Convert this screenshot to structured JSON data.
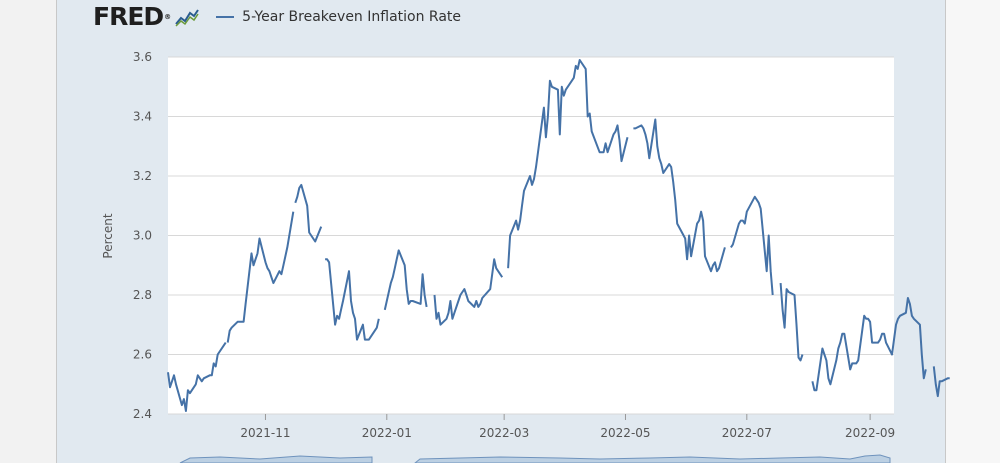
{
  "brand": {
    "logo_text": "FRED",
    "registered_mark": "®"
  },
  "colors": {
    "series": "#4572a7",
    "panel_bg": "#e1e9f0",
    "plot_bg": "#ffffff",
    "grid": "#d8d8d8"
  },
  "chart_data": {
    "type": "line",
    "series_name": "5-Year Breakeven Inflation Rate",
    "ylabel": "Percent",
    "xlabel": "",
    "ylim": [
      2.4,
      3.6
    ],
    "yticks": [
      2.4,
      2.6,
      2.8,
      3.0,
      3.2,
      3.4,
      3.6
    ],
    "ytick_labels": [
      "2.4",
      "2.6",
      "2.8",
      "3.0",
      "3.2",
      "3.4",
      "3.6"
    ],
    "x_start": "2021-09-13",
    "x_end": "2022-09-13",
    "xticks": [
      "2021-11-01",
      "2022-01-01",
      "2022-03-01",
      "2022-05-01",
      "2022-07-01",
      "2022-09-01"
    ],
    "xtick_labels": [
      "2021-11",
      "2022-01",
      "2022-03",
      "2022-05",
      "2022-07",
      "2022-09"
    ],
    "grid": true,
    "segments": [
      [
        [
          "2021-09-13",
          2.54
        ],
        [
          "2021-09-14",
          2.49
        ],
        [
          "2021-09-15",
          2.51
        ],
        [
          "2021-09-16",
          2.53
        ],
        [
          "2021-09-17",
          2.5
        ],
        [
          "2021-09-20",
          2.43
        ],
        [
          "2021-09-21",
          2.45
        ],
        [
          "2021-09-22",
          2.41
        ],
        [
          "2021-09-23",
          2.48
        ],
        [
          "2021-09-24",
          2.47
        ],
        [
          "2021-09-27",
          2.5
        ],
        [
          "2021-09-28",
          2.53
        ],
        [
          "2021-09-29",
          2.52
        ],
        [
          "2021-09-30",
          2.51
        ],
        [
          "2021-10-01",
          2.52
        ],
        [
          "2021-10-04",
          2.53
        ],
        [
          "2021-10-05",
          2.53
        ],
        [
          "2021-10-06",
          2.57
        ],
        [
          "2021-10-07",
          2.56
        ],
        [
          "2021-10-08",
          2.6
        ],
        [
          "2021-10-12",
          2.64
        ]
      ],
      [
        [
          "2021-10-13",
          2.64
        ],
        [
          "2021-10-14",
          2.68
        ],
        [
          "2021-10-15",
          2.69
        ],
        [
          "2021-10-18",
          2.71
        ],
        [
          "2021-10-19",
          2.71
        ],
        [
          "2021-10-20",
          2.71
        ],
        [
          "2021-10-21",
          2.71
        ],
        [
          "2021-10-22",
          2.77
        ],
        [
          "2021-10-25",
          2.94
        ],
        [
          "2021-10-26",
          2.9
        ],
        [
          "2021-10-27",
          2.92
        ],
        [
          "2021-10-28",
          2.94
        ],
        [
          "2021-10-29",
          2.99
        ],
        [
          "2021-11-01",
          2.91
        ],
        [
          "2021-11-02",
          2.89
        ],
        [
          "2021-11-03",
          2.88
        ],
        [
          "2021-11-04",
          2.86
        ],
        [
          "2021-11-05",
          2.84
        ],
        [
          "2021-11-08",
          2.88
        ],
        [
          "2021-11-09",
          2.87
        ],
        [
          "2021-11-10",
          2.9
        ],
        [
          "2021-11-12",
          2.96
        ],
        [
          "2021-11-15",
          3.08
        ]
      ],
      [
        [
          "2021-11-16",
          3.11
        ],
        [
          "2021-11-17",
          3.13
        ],
        [
          "2021-11-18",
          3.16
        ],
        [
          "2021-11-19",
          3.17
        ],
        [
          "2021-11-22",
          3.1
        ],
        [
          "2021-11-23",
          3.01
        ],
        [
          "2021-11-24",
          3.0
        ],
        [
          "2021-11-26",
          2.98
        ],
        [
          "2021-11-29",
          3.03
        ]
      ],
      [
        [
          "2021-12-01",
          2.92
        ],
        [
          "2021-12-02",
          2.92
        ],
        [
          "2021-12-03",
          2.91
        ],
        [
          "2021-12-06",
          2.7
        ],
        [
          "2021-12-07",
          2.73
        ],
        [
          "2021-12-08",
          2.72
        ],
        [
          "2021-12-09",
          2.75
        ],
        [
          "2021-12-10",
          2.78
        ],
        [
          "2021-12-13",
          2.88
        ],
        [
          "2021-12-14",
          2.78
        ],
        [
          "2021-12-15",
          2.74
        ],
        [
          "2021-12-16",
          2.72
        ],
        [
          "2021-12-17",
          2.65
        ],
        [
          "2021-12-20",
          2.7
        ],
        [
          "2021-12-21",
          2.65
        ],
        [
          "2021-12-22",
          2.65
        ],
        [
          "2021-12-23",
          2.65
        ],
        [
          "2021-12-27",
          2.69
        ],
        [
          "2021-12-28",
          2.72
        ]
      ],
      [
        [
          "2021-12-31",
          2.75
        ],
        [
          "2022-01-03",
          2.84
        ],
        [
          "2022-01-04",
          2.86
        ],
        [
          "2022-01-05",
          2.89
        ],
        [
          "2022-01-06",
          2.92
        ],
        [
          "2022-01-07",
          2.95
        ],
        [
          "2022-01-10",
          2.9
        ],
        [
          "2022-01-11",
          2.82
        ],
        [
          "2022-01-12",
          2.77
        ],
        [
          "2022-01-13",
          2.78
        ],
        [
          "2022-01-14",
          2.78
        ],
        [
          "2022-01-18",
          2.77
        ],
        [
          "2022-01-19",
          2.87
        ],
        [
          "2022-01-20",
          2.8
        ],
        [
          "2022-01-21",
          2.76
        ]
      ],
      [
        [
          "2022-01-25",
          2.8
        ],
        [
          "2022-01-26",
          2.72
        ],
        [
          "2022-01-27",
          2.74
        ],
        [
          "2022-01-28",
          2.7
        ],
        [
          "2022-01-31",
          2.72
        ],
        [
          "2022-02-01",
          2.74
        ],
        [
          "2022-02-02",
          2.78
        ],
        [
          "2022-02-03",
          2.72
        ],
        [
          "2022-02-04",
          2.74
        ],
        [
          "2022-02-07",
          2.8
        ],
        [
          "2022-02-08",
          2.81
        ],
        [
          "2022-02-09",
          2.82
        ],
        [
          "2022-02-10",
          2.8
        ],
        [
          "2022-02-11",
          2.78
        ],
        [
          "2022-02-14",
          2.76
        ],
        [
          "2022-02-15",
          2.78
        ],
        [
          "2022-02-16",
          2.76
        ],
        [
          "2022-02-17",
          2.77
        ],
        [
          "2022-02-18",
          2.79
        ],
        [
          "2022-02-22",
          2.82
        ],
        [
          "2022-02-23",
          2.87
        ],
        [
          "2022-02-24",
          2.92
        ],
        [
          "2022-02-25",
          2.89
        ],
        [
          "2022-02-28",
          2.86
        ]
      ],
      [
        [
          "2022-03-03",
          2.89
        ],
        [
          "2022-03-04",
          3.0
        ],
        [
          "2022-03-07",
          3.05
        ],
        [
          "2022-03-08",
          3.02
        ],
        [
          "2022-03-09",
          3.05
        ],
        [
          "2022-03-10",
          3.1
        ],
        [
          "2022-03-11",
          3.15
        ],
        [
          "2022-03-14",
          3.2
        ],
        [
          "2022-03-15",
          3.17
        ],
        [
          "2022-03-16",
          3.19
        ],
        [
          "2022-03-17",
          3.23
        ],
        [
          "2022-03-18",
          3.28
        ],
        [
          "2022-03-21",
          3.43
        ],
        [
          "2022-03-22",
          3.33
        ],
        [
          "2022-03-23",
          3.4
        ],
        [
          "2022-03-24",
          3.52
        ],
        [
          "2022-03-25",
          3.5
        ],
        [
          "2022-03-28",
          3.49
        ],
        [
          "2022-03-29",
          3.34
        ],
        [
          "2022-03-30",
          3.5
        ],
        [
          "2022-03-31",
          3.47
        ],
        [
          "2022-04-01",
          3.49
        ],
        [
          "2022-04-04",
          3.52
        ],
        [
          "2022-04-05",
          3.53
        ],
        [
          "2022-04-06",
          3.57
        ],
        [
          "2022-04-07",
          3.56
        ],
        [
          "2022-04-08",
          3.59
        ],
        [
          "2022-04-11",
          3.56
        ],
        [
          "2022-04-12",
          3.4
        ],
        [
          "2022-04-13",
          3.41
        ],
        [
          "2022-04-14",
          3.35
        ],
        [
          "2022-04-18",
          3.28
        ],
        [
          "2022-04-19",
          3.28
        ],
        [
          "2022-04-20",
          3.28
        ],
        [
          "2022-04-21",
          3.31
        ],
        [
          "2022-04-22",
          3.28
        ],
        [
          "2022-04-25",
          3.34
        ],
        [
          "2022-04-26",
          3.35
        ],
        [
          "2022-04-27",
          3.37
        ],
        [
          "2022-04-28",
          3.32
        ],
        [
          "2022-04-29",
          3.25
        ],
        [
          "2022-05-02",
          3.33
        ]
      ],
      [
        [
          "2022-05-05",
          3.36
        ],
        [
          "2022-05-06",
          3.36
        ],
        [
          "2022-05-09",
          3.37
        ],
        [
          "2022-05-10",
          3.36
        ],
        [
          "2022-05-11",
          3.34
        ],
        [
          "2022-05-12",
          3.31
        ],
        [
          "2022-05-13",
          3.26
        ],
        [
          "2022-05-16",
          3.39
        ],
        [
          "2022-05-17",
          3.3
        ],
        [
          "2022-05-18",
          3.26
        ],
        [
          "2022-05-19",
          3.24
        ],
        [
          "2022-05-20",
          3.21
        ],
        [
          "2022-05-23",
          3.24
        ],
        [
          "2022-05-24",
          3.23
        ],
        [
          "2022-05-25",
          3.18
        ],
        [
          "2022-05-26",
          3.12
        ],
        [
          "2022-05-27",
          3.04
        ],
        [
          "2022-05-31",
          2.99
        ],
        [
          "2022-06-01",
          2.92
        ],
        [
          "2022-06-02",
          3.0
        ],
        [
          "2022-06-03",
          2.93
        ],
        [
          "2022-06-06",
          3.04
        ],
        [
          "2022-06-07",
          3.05
        ],
        [
          "2022-06-08",
          3.08
        ],
        [
          "2022-06-09",
          3.05
        ],
        [
          "2022-06-10",
          2.93
        ],
        [
          "2022-06-13",
          2.88
        ],
        [
          "2022-06-14",
          2.9
        ],
        [
          "2022-06-15",
          2.91
        ],
        [
          "2022-06-16",
          2.88
        ],
        [
          "2022-06-17",
          2.89
        ],
        [
          "2022-06-20",
          2.96
        ]
      ],
      [
        [
          "2022-06-23",
          2.96
        ],
        [
          "2022-06-24",
          2.97
        ],
        [
          "2022-06-27",
          3.04
        ],
        [
          "2022-06-28",
          3.05
        ],
        [
          "2022-06-29",
          3.05
        ],
        [
          "2022-06-30",
          3.04
        ],
        [
          "2022-07-01",
          3.08
        ],
        [
          "2022-07-05",
          3.13
        ],
        [
          "2022-07-06",
          3.12
        ],
        [
          "2022-07-07",
          3.11
        ],
        [
          "2022-07-08",
          3.09
        ],
        [
          "2022-07-11",
          2.88
        ],
        [
          "2022-07-12",
          3.0
        ],
        [
          "2022-07-13",
          2.88
        ],
        [
          "2022-07-14",
          2.8
        ]
      ],
      [
        [
          "2022-07-18",
          2.84
        ],
        [
          "2022-07-19",
          2.75
        ],
        [
          "2022-07-20",
          2.69
        ],
        [
          "2022-07-21",
          2.82
        ],
        [
          "2022-07-22",
          2.81
        ],
        [
          "2022-07-25",
          2.8
        ],
        [
          "2022-07-26",
          2.7
        ],
        [
          "2022-07-27",
          2.59
        ],
        [
          "2022-07-28",
          2.58
        ],
        [
          "2022-07-29",
          2.6
        ]
      ],
      [
        [
          "2022-08-03",
          2.51
        ],
        [
          "2022-08-04",
          2.48
        ],
        [
          "2022-08-05",
          2.48
        ],
        [
          "2022-08-08",
          2.62
        ],
        [
          "2022-08-09",
          2.6
        ],
        [
          "2022-08-10",
          2.58
        ],
        [
          "2022-08-11",
          2.52
        ],
        [
          "2022-08-12",
          2.5
        ],
        [
          "2022-08-15",
          2.58
        ],
        [
          "2022-08-16",
          2.62
        ],
        [
          "2022-08-17",
          2.64
        ],
        [
          "2022-08-18",
          2.67
        ],
        [
          "2022-08-19",
          2.67
        ],
        [
          "2022-08-22",
          2.55
        ],
        [
          "2022-08-23",
          2.57
        ],
        [
          "2022-08-24",
          2.57
        ],
        [
          "2022-08-25",
          2.57
        ],
        [
          "2022-08-26",
          2.58
        ],
        [
          "2022-08-29",
          2.73
        ],
        [
          "2022-08-30",
          2.72
        ],
        [
          "2022-08-31",
          2.72
        ],
        [
          "2022-09-01",
          2.71
        ],
        [
          "2022-09-02",
          2.64
        ],
        [
          "2022-09-05",
          2.64
        ],
        [
          "2022-09-06",
          2.65
        ],
        [
          "2022-09-07",
          2.67
        ],
        [
          "2022-09-08",
          2.67
        ],
        [
          "2022-09-09",
          2.64
        ],
        [
          "2022-09-12",
          2.6
        ],
        [
          "2022-09-13",
          2.65
        ],
        [
          "2022-09-14",
          2.7
        ],
        [
          "2022-09-15",
          2.72
        ],
        [
          "2022-09-16",
          2.73
        ],
        [
          "2022-09-19",
          2.74
        ],
        [
          "2022-09-20",
          2.79
        ],
        [
          "2022-09-21",
          2.77
        ],
        [
          "2022-09-22",
          2.73
        ],
        [
          "2022-09-23",
          2.72
        ],
        [
          "2022-09-26",
          2.7
        ],
        [
          "2022-09-27",
          2.6
        ],
        [
          "2022-09-28",
          2.52
        ],
        [
          "2022-09-29",
          2.55
        ]
      ],
      [
        [
          "2022-10-03",
          2.56
        ],
        [
          "2022-10-04",
          2.5
        ],
        [
          "2022-10-05",
          2.46
        ],
        [
          "2022-10-06",
          2.51
        ],
        [
          "2022-10-07",
          2.51
        ],
        [
          "2022-10-10",
          2.52
        ],
        [
          "2022-10-11",
          2.52
        ]
      ]
    ]
  }
}
